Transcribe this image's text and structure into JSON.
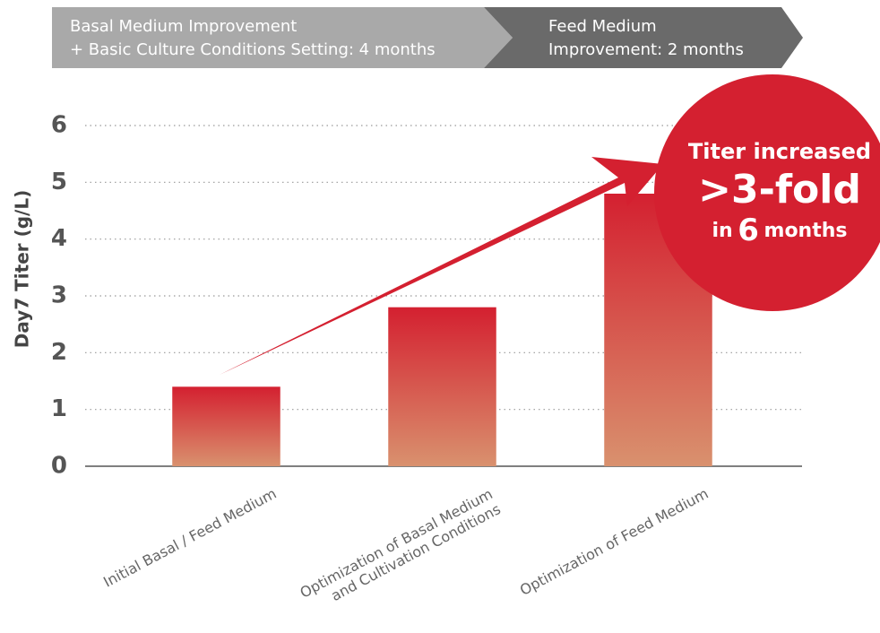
{
  "chart_data": {
    "type": "bar",
    "y_label": "Day7 Titer (g/L)",
    "categories": [
      "Initial Basal / Feed Medium",
      "Optimization of Basal Medium\nand Cultivation Conditions",
      "Optimization of Feed Medium"
    ],
    "values": [
      1.4,
      2.8,
      4.8
    ],
    "color": "#d42030",
    "ylim": [
      0,
      6
    ],
    "yticks": [
      0,
      1,
      2,
      3,
      4,
      5,
      6
    ],
    "grid": true,
    "phases": [
      {
        "lines": [
          "Basal Medium Improvement",
          "+ Basic Culture Conditions Setting: 4 months"
        ]
      },
      {
        "lines": [
          "Feed Medium",
          "Improvement: 2 months"
        ]
      }
    ],
    "callout": {
      "line1": "Titer increased",
      "line2": ">3-fold",
      "line3_start": "in",
      "line3_number": "6",
      "line3_end": "months"
    }
  }
}
